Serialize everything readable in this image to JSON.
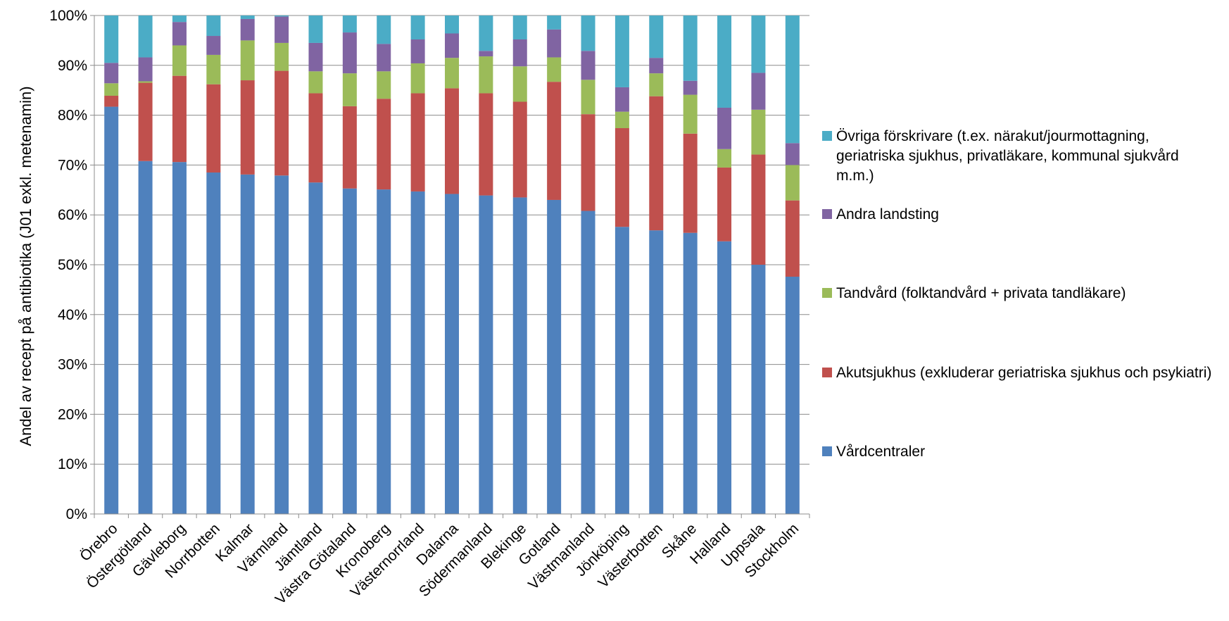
{
  "chart_data": {
    "type": "bar",
    "stacked": true,
    "title": "",
    "xlabel": "",
    "ylabel": "Andel av recept på antibiotika (J01 exkl. metenamin)",
    "ylim": [
      0,
      100
    ],
    "yticks": [
      "0%",
      "10%",
      "20%",
      "30%",
      "40%",
      "50%",
      "60%",
      "70%",
      "80%",
      "90%",
      "100%"
    ],
    "grid": "horizontal",
    "legend_position": "right",
    "categories": [
      "Örebro",
      "Östergötland",
      "Gävleborg",
      "Norrbotten",
      "Kalmar",
      "Värmland",
      "Jämtland",
      "Västra Götaland",
      "Kronoberg",
      "Västernorrland",
      "Dalarna",
      "Södermanland",
      "Blekinge",
      "Gotland",
      "Västmanland",
      "Jönköping",
      "Västerbotten",
      "Skåne",
      "Halland",
      "Uppsala",
      "Stockholm"
    ],
    "series": [
      {
        "name": "Vårdcentraler",
        "color": "#4F81BD",
        "values": [
          81.7,
          70.8,
          70.6,
          68.5,
          68.1,
          67.9,
          66.5,
          65.3,
          65.1,
          64.7,
          64.2,
          63.9,
          63.5,
          63.0,
          60.8,
          57.6,
          56.9,
          56.4,
          54.7,
          50.0,
          47.6
        ]
      },
      {
        "name": "Akutsjukhus (exkluderar geriatriska sjukhus och psykiatri)",
        "color": "#C0504D",
        "values": [
          2.2,
          15.7,
          17.3,
          17.7,
          18.9,
          21.0,
          17.9,
          16.5,
          18.2,
          19.7,
          21.2,
          20.5,
          19.2,
          23.7,
          19.4,
          19.8,
          26.9,
          19.9,
          14.8,
          22.1,
          15.3
        ]
      },
      {
        "name": "Tandvård (folktandvård + privata tandläkare)",
        "color": "#9BBB59",
        "values": [
          2.5,
          0.3,
          6.1,
          5.9,
          8.0,
          5.6,
          4.4,
          6.6,
          5.5,
          6.0,
          6.1,
          7.4,
          7.1,
          4.9,
          6.9,
          3.3,
          4.6,
          7.8,
          3.7,
          9.0,
          7.1
        ]
      },
      {
        "name": "Andra landsting",
        "color": "#8064A2",
        "values": [
          4.1,
          4.8,
          4.7,
          3.8,
          4.3,
          5.3,
          5.7,
          8.2,
          5.5,
          4.8,
          4.9,
          1.1,
          5.4,
          5.6,
          5.8,
          4.9,
          3.1,
          2.8,
          8.3,
          7.4,
          4.4
        ]
      },
      {
        "name": "Övriga förskrivare (t.ex. närakut/jourmottagning, geriatriska sjukhus, privatläkare, kommunal sjukvård m.m.)",
        "color": "#4BACC6",
        "values": [
          9.5,
          8.4,
          1.3,
          4.1,
          0.7,
          0.2,
          5.5,
          3.4,
          5.7,
          4.8,
          3.6,
          7.1,
          4.8,
          2.8,
          7.1,
          14.4,
          8.5,
          13.1,
          18.5,
          11.5,
          25.6
        ]
      }
    ]
  },
  "legend": {
    "items": [
      {
        "label": "Övriga förskrivare (t.ex. närakut/jourmottagning, geriatriska sjukhus, privatläkare, kommunal sjukvård m.m.)",
        "color": "#4BACC6"
      },
      {
        "label": "Andra landsting",
        "color": "#8064A2"
      },
      {
        "label": "Tandvård (folktandvård + privata tandläkare)",
        "color": "#9BBB59"
      },
      {
        "label": "Akutsjukhus (exkluderar geriatriska sjukhus och psykiatri)",
        "color": "#C0504D"
      },
      {
        "label": "Vårdcentraler",
        "color": "#4F81BD"
      }
    ]
  }
}
